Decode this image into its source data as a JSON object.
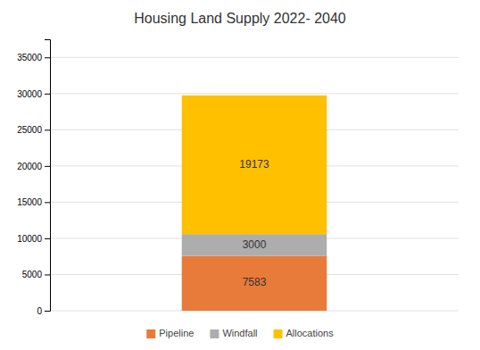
{
  "chart_data": {
    "type": "bar",
    "stacked": true,
    "title": "Housing Land Supply 2022- 2040",
    "categories": [
      null
    ],
    "series": [
      {
        "name": "Pipeline",
        "color": "#E87A3A",
        "values": [
          7583
        ]
      },
      {
        "name": "Windfall",
        "color": "#ADADAD",
        "values": [
          3000
        ]
      },
      {
        "name": "Allocations",
        "color": "#FFC000",
        "values": [
          19173
        ]
      }
    ],
    "ylim": [
      0,
      37500
    ],
    "yticks": [
      0,
      5000,
      10000,
      15000,
      20000,
      25000,
      30000,
      35000
    ],
    "grid": true,
    "legend": "bottom",
    "data_labels": true,
    "tick_labels": "y"
  }
}
